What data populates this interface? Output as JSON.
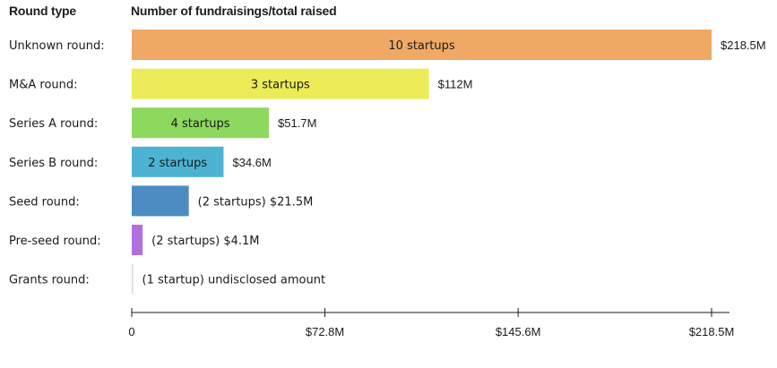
{
  "headers": {
    "category": "Round type",
    "value": "Number of fundraisings/total raised"
  },
  "chart_data": {
    "type": "bar",
    "orientation": "horizontal",
    "xlim": [
      0,
      218.5
    ],
    "x_unit": "$M",
    "grid": false,
    "legend": "none",
    "categories": [
      "Unknown round:",
      "M&A round:",
      "Series A round:",
      "Series B round:",
      "Seed round:",
      "Pre-seed round:",
      "Grants round:"
    ],
    "values": [
      218.5,
      112,
      51.7,
      34.6,
      21.5,
      4.1,
      0
    ],
    "inside_labels": [
      "10 startups",
      "3 startups",
      "4 startups",
      "2 startups",
      "",
      "",
      ""
    ],
    "outside_labels": [
      "$218.5M",
      "$112M",
      "$51.7M",
      "$34.6M",
      "(2 startups) $21.5M",
      "(2 startups) $4.1M",
      "(1 startup) undisclosed amount"
    ],
    "colors": [
      "#f0a965",
      "#ecec58",
      "#8dd85e",
      "#4cb3d2",
      "#4d8bc3",
      "#b070e0",
      "#d8d8d8"
    ],
    "x_ticks": [
      {
        "value": 0,
        "label": "0"
      },
      {
        "value": 72.8,
        "label": "$72.8M"
      },
      {
        "value": 145.6,
        "label": "$145.6M"
      },
      {
        "value": 218.5,
        "label": "$218.5M"
      }
    ]
  }
}
